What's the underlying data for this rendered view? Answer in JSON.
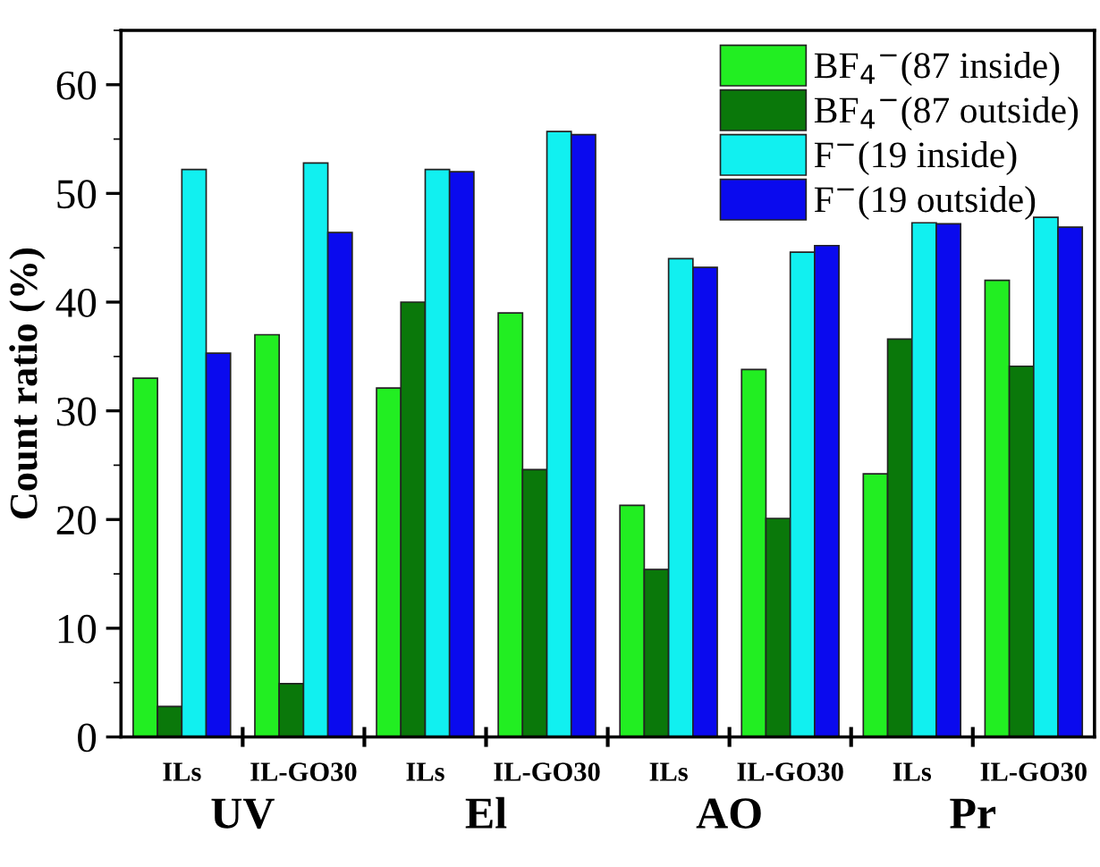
{
  "chart_data": {
    "type": "bar",
    "ylabel": "Count ratio (%)",
    "categories": [
      "ILs",
      "IL-GO30",
      "ILs",
      "IL-GO30",
      "ILs",
      "IL-GO30",
      "ILs",
      "IL-GO30"
    ],
    "series": [
      {
        "name": "BF$_{4}$$^{−}$(87 inside)",
        "color": "#22ee22",
        "values": [
          33,
          37,
          32.1,
          39,
          21.3,
          33.8,
          24.2,
          42
        ]
      },
      {
        "name": "BF$_{4}$$^{−}$(87 outside)",
        "color": "#0a780a",
        "values": [
          2.8,
          4.9,
          40,
          24.6,
          15.4,
          20.1,
          36.6,
          34.1
        ]
      },
      {
        "name": "F$^{−}$(19 inside)",
        "color": "#11f0f0",
        "values": [
          52.2,
          52.8,
          52.2,
          55.7,
          44,
          44.6,
          47.3,
          47.8
        ]
      },
      {
        "name": "F$^{−}$(19 outside)",
        "color": "#0a0aee",
        "values": [
          35.3,
          46.4,
          52,
          55.4,
          43.2,
          45.2,
          47.2,
          46.9
        ]
      }
    ],
    "annotations": [
      "UV",
      "El",
      "AO",
      "Pr"
    ],
    "ylim": [
      0,
      65
    ],
    "yticks": [
      0,
      10,
      20,
      30,
      40,
      50,
      60
    ],
    "grid": false,
    "legend": "top right"
  }
}
